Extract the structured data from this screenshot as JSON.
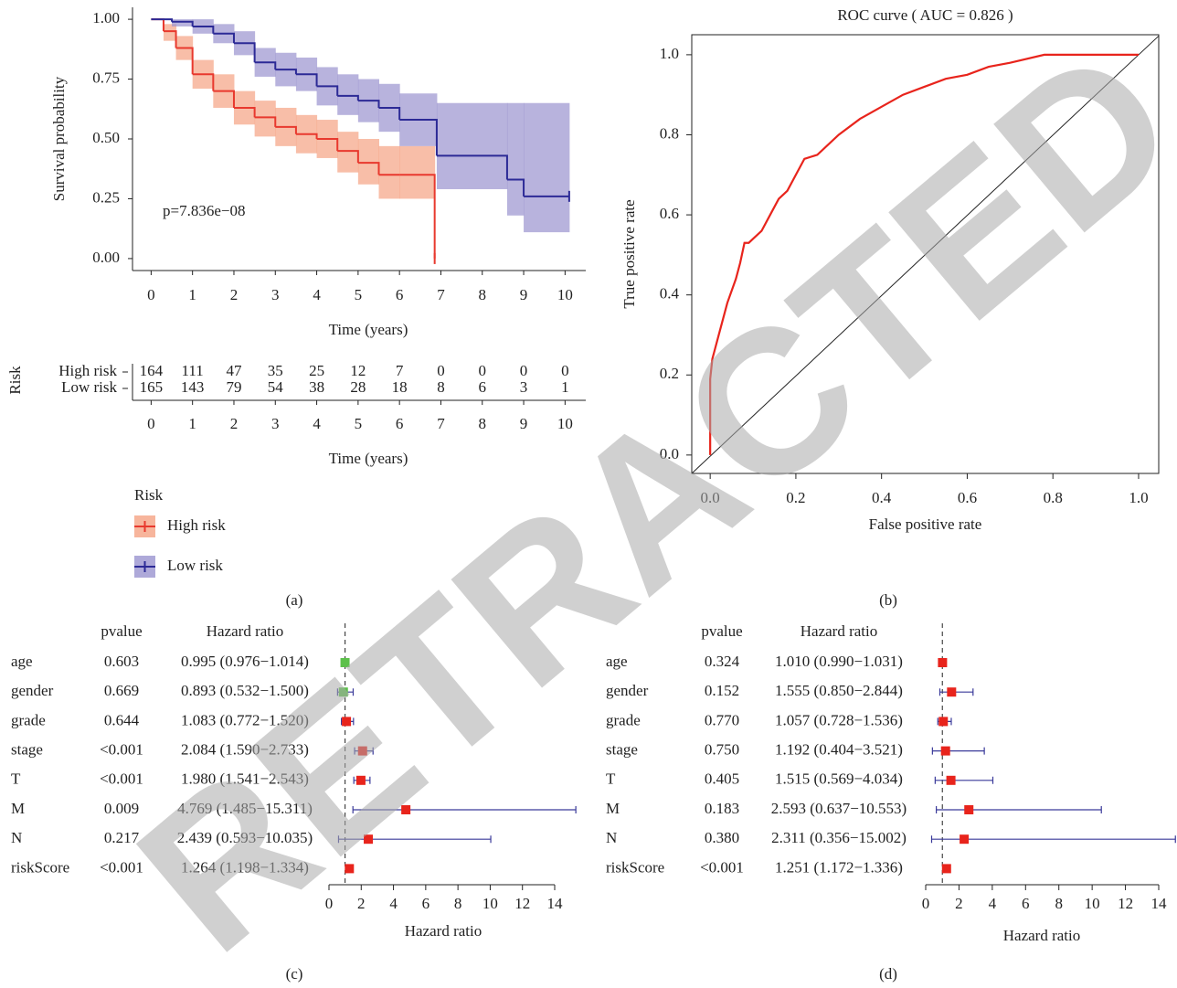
{
  "chart_data": [
    {
      "type": "survival",
      "xlabel": "Time (years)",
      "ylabel": "Survival probability",
      "xlim": [
        -0.45,
        10.5
      ],
      "xticks": [
        0,
        1,
        2,
        3,
        4,
        5,
        6,
        7,
        8,
        9,
        10
      ],
      "ylim": [
        -0.05,
        1.05
      ],
      "yticks": [
        {
          "value": 0,
          "label": "0.00"
        },
        {
          "value": 0.25,
          "label": "0.25"
        },
        {
          "value": 0.5,
          "label": "0.50"
        },
        {
          "value": 0.75,
          "label": "0.75"
        },
        {
          "value": 1,
          "label": "1.00"
        }
      ],
      "annotation": "p=7.836e−08",
      "legend_title": "Risk",
      "panel_label": "(a)",
      "series": [
        {
          "name": "High risk",
          "color": "#e8392e",
          "band_color": "#f5a283",
          "x": [
            0,
            0.3,
            0.6,
            1,
            1.5,
            2,
            2.5,
            3,
            3.5,
            4,
            4.5,
            5,
            5.5,
            6,
            6.85
          ],
          "values": [
            1,
            0.95,
            0.88,
            0.77,
            0.7,
            0.63,
            0.59,
            0.55,
            0.52,
            0.5,
            0.45,
            0.4,
            0.35,
            0.35,
            0
          ],
          "lower": [
            1,
            0.91,
            0.83,
            0.71,
            0.63,
            0.56,
            0.51,
            0.47,
            0.44,
            0.42,
            0.36,
            0.31,
            0.25,
            0.25,
            null
          ],
          "upper": [
            1,
            0.98,
            0.93,
            0.83,
            0.77,
            0.7,
            0.66,
            0.63,
            0.6,
            0.58,
            0.53,
            0.5,
            0.47,
            0.47,
            null
          ],
          "at_risk": [
            164,
            111,
            47,
            35,
            25,
            12,
            7,
            0,
            0,
            0,
            0
          ]
        },
        {
          "name": "Low risk",
          "color": "#2c2a96",
          "band_color": "#9a93cf",
          "x": [
            0,
            0.5,
            1,
            1.5,
            2,
            2.5,
            3,
            3.5,
            4,
            4.5,
            5,
            5.5,
            6,
            6.9,
            8.6,
            9,
            10.1
          ],
          "values": [
            1,
            0.99,
            0.97,
            0.94,
            0.9,
            0.82,
            0.79,
            0.77,
            0.72,
            0.68,
            0.66,
            0.63,
            0.58,
            0.43,
            0.33,
            0.26,
            0.26
          ],
          "lower": [
            1,
            0.97,
            0.94,
            0.9,
            0.85,
            0.76,
            0.72,
            0.7,
            0.64,
            0.6,
            0.57,
            0.53,
            0.47,
            0.29,
            0.18,
            0.11,
            null
          ],
          "upper": [
            1,
            1,
            1,
            0.98,
            0.95,
            0.88,
            0.86,
            0.84,
            0.8,
            0.77,
            0.75,
            0.73,
            0.69,
            0.65,
            0.65,
            0.65,
            null
          ],
          "at_risk": [
            165,
            143,
            79,
            54,
            38,
            28,
            18,
            8,
            6,
            3,
            1
          ]
        }
      ]
    },
    {
      "type": "roc",
      "title": "ROC curve ( AUC = 0.826 )",
      "xlabel": "False positive rate",
      "ylabel": "True positive rate",
      "color": "#e8241c",
      "panel_label": "(b)",
      "xlim": [
        -0.043,
        1.047
      ],
      "ylim": [
        -0.046,
        1.05
      ],
      "xticks": [
        {
          "value": 0,
          "label": "0.0"
        },
        {
          "value": 0.2,
          "label": "0.2"
        },
        {
          "value": 0.4,
          "label": "0.4"
        },
        {
          "value": 0.6,
          "label": "0.6"
        },
        {
          "value": 0.8,
          "label": "0.8"
        },
        {
          "value": 1,
          "label": "1.0"
        }
      ],
      "yticks": [
        {
          "value": 0,
          "label": "0.0"
        },
        {
          "value": 0.2,
          "label": "0.2"
        },
        {
          "value": 0.4,
          "label": "0.4"
        },
        {
          "value": 0.6,
          "label": "0.6"
        },
        {
          "value": 0.8,
          "label": "0.8"
        },
        {
          "value": 1,
          "label": "1.0"
        }
      ],
      "x": [
        0,
        0,
        0.005,
        0.01,
        0.02,
        0.03,
        0.04,
        0.05,
        0.06,
        0.07,
        0.08,
        0.09,
        0.1,
        0.12,
        0.14,
        0.16,
        0.18,
        0.2,
        0.22,
        0.25,
        0.3,
        0.35,
        0.4,
        0.45,
        0.5,
        0.55,
        0.6,
        0.65,
        0.7,
        0.78,
        0.85,
        0.9,
        0.95,
        1
      ],
      "values": [
        0,
        0.19,
        0.24,
        0.26,
        0.3,
        0.34,
        0.38,
        0.41,
        0.44,
        0.48,
        0.53,
        0.53,
        0.54,
        0.56,
        0.6,
        0.64,
        0.66,
        0.7,
        0.74,
        0.75,
        0.8,
        0.84,
        0.87,
        0.9,
        0.92,
        0.94,
        0.95,
        0.97,
        0.98,
        1.0,
        1.0,
        1.0,
        1.0,
        1.0
      ]
    },
    {
      "type": "forest",
      "panel_label": "(c)",
      "pvalue_header": "pvalue",
      "hr_header": "Hazard ratio",
      "xlabel": "Hazard ratio",
      "xlim": [
        0,
        15.4
      ],
      "xticks": [
        0,
        2,
        4,
        6,
        8,
        10,
        12,
        14
      ],
      "ref_line": 1,
      "whisker_color": "#3a3a9a",
      "categories": [
        "age",
        "gender",
        "grade",
        "stage",
        "T",
        "M",
        "N",
        "riskScore"
      ],
      "pvalues": [
        "0.603",
        "0.669",
        "0.644",
        "<0.001",
        "<0.001",
        "0.009",
        "0.217",
        "<0.001"
      ],
      "hr_labels": [
        "0.995 (0.976−1.014)",
        "0.893 (0.532−1.500)",
        "1.083 (0.772−1.520)",
        "2.084 (1.590−2.733)",
        "1.980 (1.541−2.543)",
        "4.769 (1.485−15.311)",
        "2.439 (0.593−10.035)",
        "1.264 (1.198−1.334)"
      ],
      "values": [
        0.995,
        0.893,
        1.083,
        2.084,
        1.98,
        4.769,
        2.439,
        1.264
      ],
      "lower": [
        0.976,
        0.532,
        0.772,
        1.59,
        1.541,
        1.485,
        0.593,
        1.198
      ],
      "upper": [
        1.014,
        1.5,
        1.52,
        2.733,
        2.543,
        15.311,
        10.035,
        1.334
      ],
      "colors": [
        "#5cc04a",
        "#5cc04a",
        "#e8241c",
        "#e8241c",
        "#e8241c",
        "#e8241c",
        "#e8241c",
        "#e8241c"
      ]
    },
    {
      "type": "forest",
      "panel_label": "(d)",
      "pvalue_header": "pvalue",
      "hr_header": "Hazard ratio",
      "xlabel": "Hazard ratio",
      "xlim": [
        0,
        15
      ],
      "xticks": [
        0,
        2,
        4,
        6,
        8,
        10,
        12,
        14
      ],
      "ref_line": 1,
      "whisker_color": "#3a3a9a",
      "categories": [
        "age",
        "gender",
        "grade",
        "stage",
        "T",
        "M",
        "N",
        "riskScore"
      ],
      "pvalues": [
        "0.324",
        "0.152",
        "0.770",
        "0.750",
        "0.405",
        "0.183",
        "0.380",
        "<0.001"
      ],
      "hr_labels": [
        "1.010 (0.990−1.031)",
        "1.555 (0.850−2.844)",
        "1.057 (0.728−1.536)",
        "1.192 (0.404−3.521)",
        "1.515 (0.569−4.034)",
        "2.593 (0.637−10.553)",
        "2.311 (0.356−15.002)",
        "1.251 (1.172−1.336)"
      ],
      "values": [
        1.01,
        1.555,
        1.057,
        1.192,
        1.515,
        2.593,
        2.311,
        1.251
      ],
      "lower": [
        0.99,
        0.85,
        0.728,
        0.404,
        0.569,
        0.637,
        0.356,
        1.172
      ],
      "upper": [
        1.031,
        2.844,
        1.536,
        3.521,
        4.034,
        10.553,
        15.002,
        1.336
      ],
      "colors": [
        "#e8241c",
        "#e8241c",
        "#e8241c",
        "#e8241c",
        "#e8241c",
        "#e8241c",
        "#e8241c",
        "#e8241c"
      ]
    }
  ],
  "watermark": "RETRACTED"
}
